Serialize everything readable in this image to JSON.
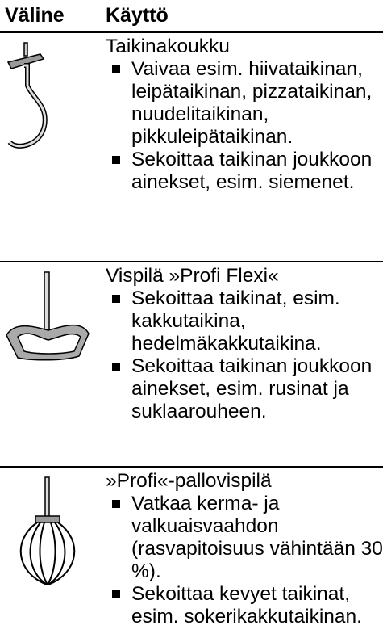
{
  "header": {
    "col1": "Väline",
    "col2": "Käyttö"
  },
  "rows": [
    {
      "title": "Taikinakoukku",
      "bullets": [
        "Vaivaa esim. hiivataikinan, leipätaikinan, pizzataikinan, nuudelitaikinan, pikkuleipätaikinan.",
        "Sekoittaa taikinan joukkoon ainekset, esim. siemenet."
      ]
    },
    {
      "title": "Vispilä »Profi Flexi«",
      "bullets": [
        "Sekoittaa taikinat, esim. kakkutaikina, hedelmäkakkutaikina.",
        "Sekoittaa taikinan joukkoon ainekset, esim. rusinat ja suklaarouheen."
      ]
    },
    {
      "title": "»Profi«-pallovispilä",
      "bullets": [
        "Vatkaa kerma- ja valkuaisvaahdon (rasvapitoisuus vähintään 30 %).",
        "Sekoittaa kevyet taikinat, esim. sokerikakkutaikinan."
      ]
    }
  ]
}
